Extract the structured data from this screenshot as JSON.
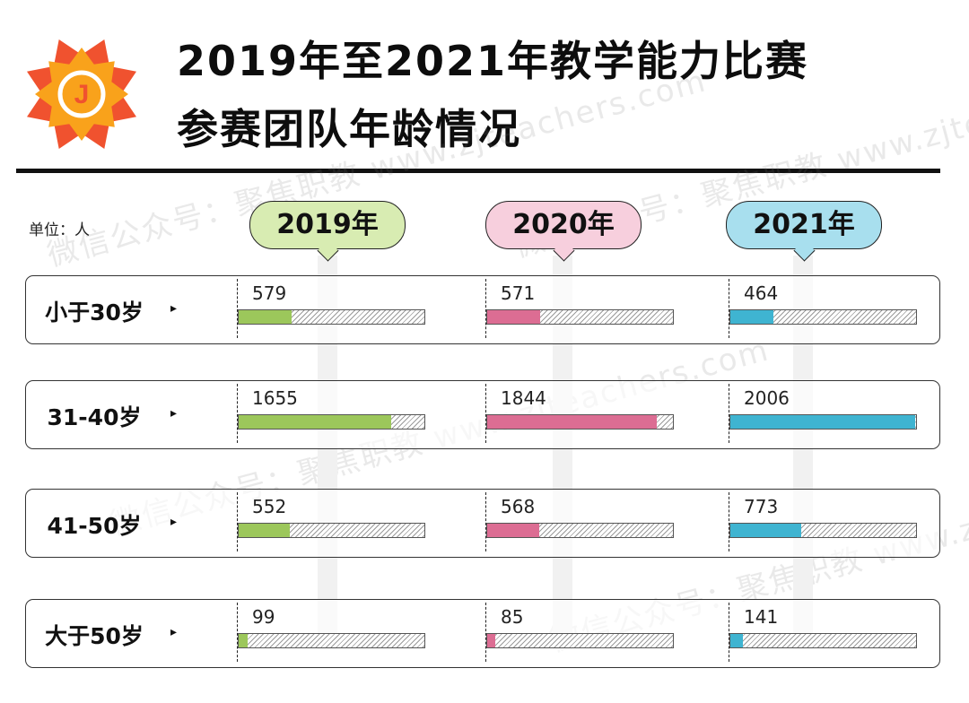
{
  "title_line1": "2019年至2021年教学能力比赛",
  "title_line2": "参赛团队年龄情况",
  "unit_label": "单位：人",
  "logo_letter": "J",
  "logo_colors": {
    "outer": "#f0522f",
    "inner": "#f9a21b",
    "ring": "#ffffff"
  },
  "watermark_text": "微信公众号：聚焦职教 www.zjteachers.com",
  "chart_data": {
    "type": "bar",
    "orientation": "horizontal",
    "unit": "人",
    "categories": [
      "小于30岁",
      "31-40岁",
      "41-50岁",
      "大于50岁"
    ],
    "series": [
      {
        "name": "2019年",
        "color": "#9cc75b",
        "tag_bg": "#d8ecb2",
        "values": [
          579,
          1655,
          552,
          99
        ]
      },
      {
        "name": "2020年",
        "color": "#dc6d93",
        "tag_bg": "#f7cfdd",
        "values": [
          571,
          1844,
          568,
          85
        ]
      },
      {
        "name": "2021年",
        "color": "#3fb4d1",
        "tag_bg": "#a8dfee",
        "values": [
          464,
          2006,
          773,
          141
        ]
      }
    ],
    "xlim": [
      0,
      2020
    ]
  }
}
